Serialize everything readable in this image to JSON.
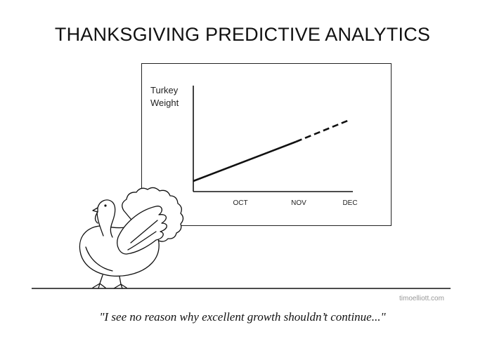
{
  "title": "THANKSGIVING PREDICTIVE ANALYTICS",
  "chart": {
    "ylabel_line1": "Turkey",
    "ylabel_line2": "Weight",
    "ticks": [
      "OCT",
      "NOV",
      "DEC"
    ],
    "line_style_actual": "solid",
    "line_style_forecast": "dashed"
  },
  "credit": "timoelliott.com",
  "caption": "\"I see no reason why excellent growth shouldn’t continue...\"",
  "colors": {
    "ink": "#111111",
    "credit_gray": "#999999",
    "background": "#ffffff"
  }
}
